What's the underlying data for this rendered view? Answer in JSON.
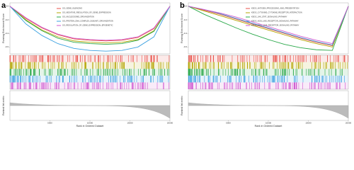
{
  "chart_data": [
    {
      "type": "line",
      "label": "a",
      "ylabel": "Running Enrichment Score",
      "ylabel_bottom": "Ranked list metric",
      "xlabel": "Rank in Ordered Dataset",
      "x": [
        0,
        2000,
        4000,
        6000,
        8000,
        10000,
        12000,
        14000,
        16000,
        18000,
        20000
      ],
      "xlim": [
        0,
        20000
      ],
      "xticks": [
        5000,
        10000,
        15000,
        20000
      ],
      "ylim": [
        -0.7,
        0.05
      ],
      "yticks": [
        {
          "value": -0.6,
          "label": "-0.6"
        },
        {
          "value": -0.4,
          "label": "-0.4"
        },
        {
          "value": -0.2,
          "label": "-0.2"
        },
        {
          "value": 0,
          "label": "0.0"
        }
      ],
      "series": [
        {
          "name": "GO_GENE_SILENCING",
          "color": "#e8524a",
          "values": [
            0,
            -0.18,
            -0.32,
            -0.42,
            -0.48,
            -0.5,
            -0.51,
            -0.5,
            -0.46,
            -0.33,
            0
          ]
        },
        {
          "name": "GO_NEGATIVE_REGULATION_OF_GENE_EXPRESSION",
          "color": "#b3a400",
          "values": [
            0,
            -0.2,
            -0.35,
            -0.45,
            -0.51,
            -0.53,
            -0.54,
            -0.53,
            -0.49,
            -0.36,
            0
          ]
        },
        {
          "name": "GO_NUCLEOSOME_ORGANIZATION",
          "color": "#2aa84a",
          "values": [
            0,
            -0.21,
            -0.36,
            -0.47,
            -0.53,
            -0.55,
            -0.56,
            -0.55,
            -0.5,
            -0.37,
            0
          ]
        },
        {
          "name": "GO_PROTEIN_DNA_COMPLEX_SUBUNIT_ORGANIZATION",
          "color": "#3aa0e0",
          "values": [
            0,
            -0.26,
            -0.43,
            -0.55,
            -0.62,
            -0.65,
            -0.66,
            -0.65,
            -0.6,
            -0.45,
            0
          ]
        },
        {
          "name": "GO_REGULATION_OF_GENE_EXPRESSION_EPIGENETIC",
          "color": "#d05ad0",
          "values": [
            0,
            -0.17,
            -0.31,
            -0.41,
            -0.47,
            -0.49,
            -0.5,
            -0.49,
            -0.45,
            -0.32,
            0
          ]
        }
      ]
    },
    {
      "type": "line",
      "label": "b",
      "ylabel": "Running Enrichment Score",
      "ylabel_bottom": "Ranked list metric",
      "xlabel": "Rank in Ordered Dataset",
      "x": [
        0,
        2000,
        4000,
        6000,
        8000,
        10000,
        12000,
        14000,
        16000,
        18000,
        20000
      ],
      "xlim": [
        0,
        20000
      ],
      "xticks": [
        5000,
        10000,
        15000,
        20000
      ],
      "ylim": [
        -0.7,
        0.05
      ],
      "yticks": [
        {
          "value": -0.6,
          "label": "-0.6"
        },
        {
          "value": -0.4,
          "label": "-0.4"
        },
        {
          "value": -0.2,
          "label": "-0.2"
        },
        {
          "value": 0,
          "label": "0.0"
        }
      ],
      "series": [
        {
          "name": "KEGG_ANTIGEN_PROCESSING_AND_PRESENTATION",
          "color": "#e8524a",
          "values": [
            0,
            -0.06,
            -0.12,
            -0.19,
            -0.26,
            -0.33,
            -0.4,
            -0.47,
            -0.53,
            -0.58,
            0
          ]
        },
        {
          "name": "KEGG_CYTOKINE_CYTOKINE_RECEPTOR_INTERACTION",
          "color": "#b3a400",
          "values": [
            0,
            -0.07,
            -0.14,
            -0.21,
            -0.28,
            -0.35,
            -0.42,
            -0.49,
            -0.55,
            -0.6,
            0
          ]
        },
        {
          "name": "KEGG_JAK_STAT_SIGNALING_PATHWAY",
          "color": "#2aa84a",
          "values": [
            0,
            -0.12,
            -0.22,
            -0.32,
            -0.41,
            -0.49,
            -0.56,
            -0.61,
            -0.64,
            -0.65,
            0
          ]
        },
        {
          "name": "KEGG_NOD_LIKE_RECEPTOR_SIGNALING_PATHWAY",
          "color": "#3aa0e0",
          "values": [
            0,
            -0.05,
            -0.11,
            -0.18,
            -0.25,
            -0.32,
            -0.39,
            -0.46,
            -0.52,
            -0.57,
            0
          ]
        },
        {
          "name": "KEGG_TOLL_LIKE_RECEPTOR_SIGNALING_PATHWAY",
          "color": "#d05ad0",
          "values": [
            0,
            -0.05,
            -0.1,
            -0.16,
            -0.23,
            -0.3,
            -0.37,
            -0.44,
            -0.5,
            -0.55,
            0
          ]
        }
      ]
    }
  ]
}
